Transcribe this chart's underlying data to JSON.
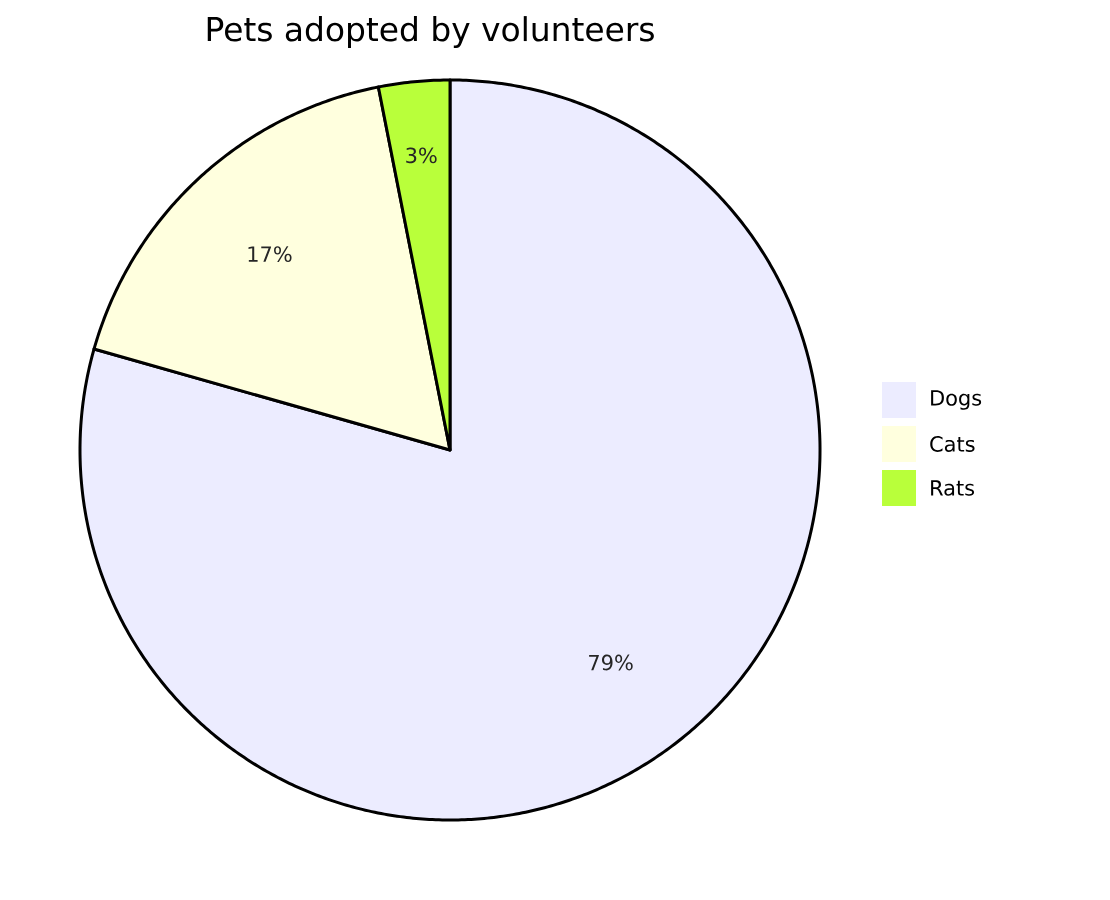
{
  "chart_data": {
    "type": "pie",
    "title": "Pets adopted by volunteers",
    "categories": [
      "Dogs",
      "Cats",
      "Rats"
    ],
    "values": [
      79.4,
      17.5,
      3.1
    ],
    "value_labels": [
      "79%",
      "17%",
      "3%"
    ],
    "colors": [
      "#ececff",
      "#ffffde",
      "#b9ff3a"
    ],
    "legend": "right"
  }
}
